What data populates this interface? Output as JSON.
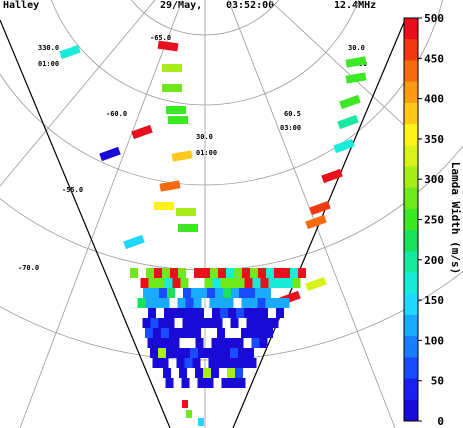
{
  "header": {
    "station": "Halley",
    "date": "29/May,",
    "time": "03:52:00",
    "frequency": "12.4MHz"
  },
  "grid_labels": {
    "lon_330": "330.0",
    "lat_neg65": "-65.0",
    "lon_30": "30.0",
    "mlt_0100": "01:00",
    "mlt_0300": "03:00",
    "lat_neg60": "-60.0",
    "lat_60_5": "60.5",
    "mlt_0300b": "03:00",
    "lon_0": "30.0",
    "mlt_0100b": "01:00",
    "lat_neg55": "-55.0",
    "lat_neg70": "-70.0"
  },
  "colorbar": {
    "title": "Lamda Width (m/s)",
    "ticks": [
      "500",
      "450",
      "400",
      "350",
      "300",
      "250",
      "200",
      "150",
      "100",
      "50",
      "0"
    ],
    "colors": [
      "#e8101c",
      "#f23a12",
      "#f76a10",
      "#fb9b14",
      "#ffc81a",
      "#fff21a",
      "#d8f21a",
      "#a8ec1c",
      "#70e81e",
      "#3ce824",
      "#18e25a",
      "#18e8a0",
      "#18ecd8",
      "#20d8ff",
      "#1aaaff",
      "#1a7cff",
      "#1a4cff",
      "#1a20ef",
      "#1a0ad6"
    ],
    "range": [
      0,
      500
    ]
  },
  "scatter_cells": [
    {
      "v": 160
    },
    {
      "v": 495
    },
    {
      "v": 310
    },
    {
      "v": 280
    },
    {
      "v": 260
    },
    {
      "v": 250
    },
    {
      "v": 250
    },
    {
      "v": 260
    },
    {
      "v": 240
    },
    {
      "v": 210
    },
    {
      "v": 180
    },
    {
      "v": 150
    },
    {
      "v": 480
    },
    {
      "v": 20
    },
    {
      "v": 370
    },
    {
      "v": 430
    },
    {
      "v": 360
    },
    {
      "v": 490
    },
    {
      "v": 460
    },
    {
      "v": 440
    },
    {
      "v": 340
    },
    {
      "v": 290
    },
    {
      "v": 240
    },
    {
      "v": 500
    }
  ]
}
